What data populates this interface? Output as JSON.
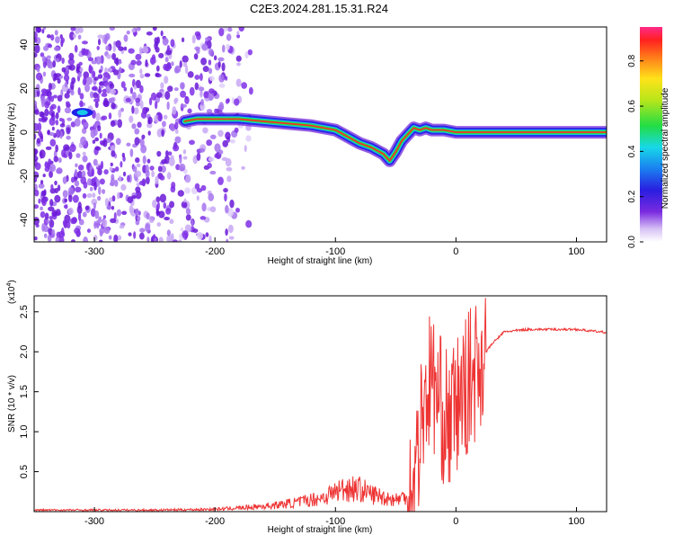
{
  "title": "C2E3.2024.281.15.31.R24",
  "chart_data": [
    {
      "type": "heatmap",
      "xlabel": "Height of straight line (km)",
      "ylabel": "Frequency (Hz)",
      "xlim": [
        -350,
        125
      ],
      "ylim": [
        -50,
        48
      ],
      "xticks": [
        -300,
        -200,
        -100,
        0,
        100
      ],
      "yticks": [
        -40,
        -20,
        0,
        20,
        40
      ],
      "colorbar": {
        "label": "Normalized spectral amplitude",
        "range": [
          0.0,
          0.95
        ],
        "ticks": [
          0.0,
          0.2,
          0.4,
          0.6,
          0.8
        ]
      },
      "trace": {
        "x": [
          -350,
          -320,
          -310,
          -300,
          -280,
          -250,
          -225,
          -215,
          -200,
          -180,
          -160,
          -140,
          -120,
          -100,
          -90,
          -80,
          -70,
          -60,
          -55,
          -50,
          -45,
          -40,
          -35,
          -30,
          -25,
          -20,
          -10,
          0,
          10,
          50,
          100,
          125
        ],
        "freq": [
          8,
          8,
          9,
          8,
          7,
          7,
          5,
          6,
          6,
          6,
          5,
          4,
          3,
          1,
          -2,
          -5,
          -7,
          -10,
          -13,
          -9,
          -4,
          -1,
          2,
          1,
          2,
          1,
          1,
          0,
          0,
          0,
          0,
          0
        ]
      }
    },
    {
      "type": "line",
      "xlabel": "Height of straight line (km)",
      "ylabel": "SNR (10 * v/v)",
      "yscale_label": "(x10",
      "yscale_exp": "4",
      "xlim": [
        -350,
        125
      ],
      "ylim": [
        0,
        2.7
      ],
      "xticks": [
        -300,
        -200,
        -100,
        0,
        100
      ],
      "yticks": [
        0.5,
        1.0,
        1.5,
        2.0,
        2.5
      ],
      "color": "#ee3333",
      "series": [
        {
          "x": [
            -350,
            -300,
            -250,
            -200,
            -175,
            -150,
            -130,
            -110,
            -100,
            -90,
            -80,
            -70,
            -60,
            -50,
            -40,
            -35,
            -30,
            -25,
            -20,
            -15,
            -10,
            -5,
            0,
            10,
            20,
            30,
            40,
            60,
            80,
            100,
            125
          ],
          "y": [
            0.02,
            0.02,
            0.02,
            0.03,
            0.05,
            0.08,
            0.12,
            0.18,
            0.25,
            0.3,
            0.28,
            0.22,
            0.18,
            0.15,
            0.2,
            0.3,
            1.0,
            1.5,
            1.7,
            1.4,
            1.2,
            1.1,
            1.3,
            1.6,
            1.9,
            2.1,
            2.25,
            2.28,
            2.28,
            2.28,
            2.24
          ]
        }
      ]
    }
  ]
}
